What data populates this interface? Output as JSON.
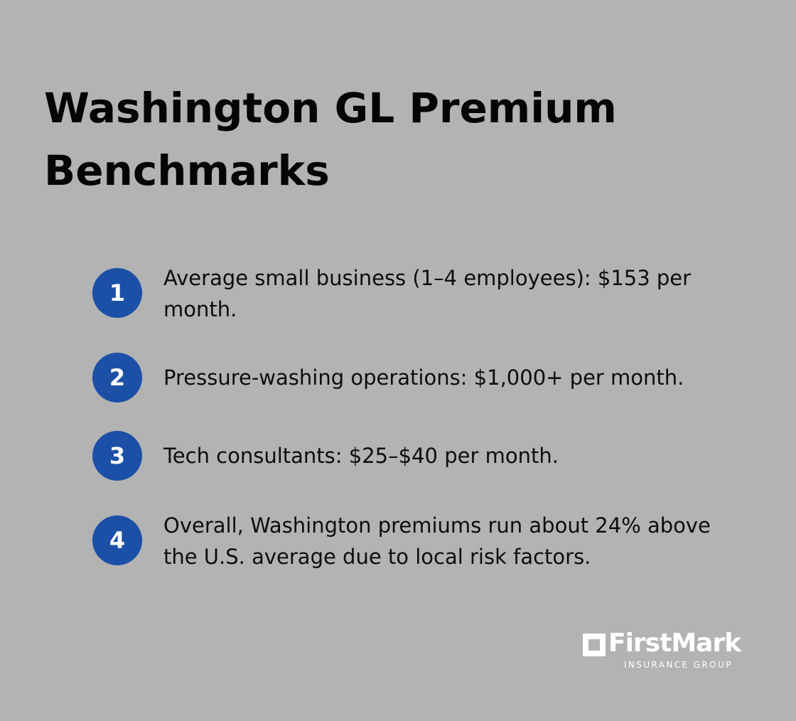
{
  "title": "Washington GL Premium Benchmarks",
  "items": [
    {
      "number": "1",
      "text": "Average small business (1–4 employees): $153 per month."
    },
    {
      "number": "2",
      "text": "Pressure-washing operations: $1,000+ per month."
    },
    {
      "number": "3",
      "text": "Tech consultants: $25–$40 per month."
    },
    {
      "number": "4",
      "text": "Overall, Washington premiums run about 24% above the U.S. average due to local risk factors."
    }
  ],
  "logo": {
    "name": "FirstMark",
    "subtitle": "INSURANCE GROUP"
  },
  "colors": {
    "background": "#b3b3b3",
    "badge": "#1b50a6",
    "text": "#0d0d0d",
    "logo": "#ffffff"
  }
}
